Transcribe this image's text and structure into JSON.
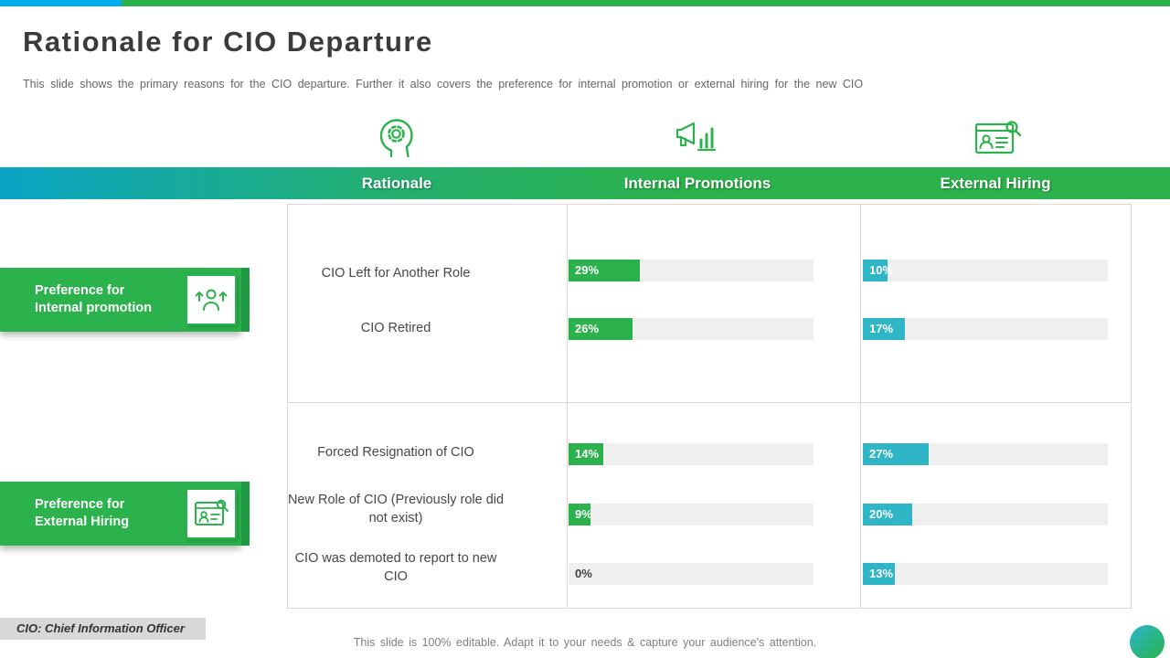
{
  "slide": {
    "title": "Rationale for CIO Departure",
    "subtitle": "This slide shows the primary reasons for the CIO departure. Further it also covers the preference for internal promotion or external hiring for the new CIO"
  },
  "table": {
    "columns": [
      {
        "label": "Rationale"
      },
      {
        "label": "Internal Promotions"
      },
      {
        "label": "External Hiring"
      }
    ]
  },
  "left_labels": {
    "internal": "Preference for Internal promotion",
    "external": "Preference for External Hiring"
  },
  "rows": [
    {
      "label": "CIO Left for Another Role",
      "internal": "29%",
      "external": "10%"
    },
    {
      "label": "CIO Retired",
      "internal": "26%",
      "external": "17%"
    },
    {
      "label": "Forced Resignation of CIO",
      "internal": "14%",
      "external": "27%"
    },
    {
      "label": "New Role of CIO (Previously role did not exist)",
      "internal": "9%",
      "external": "20%"
    },
    {
      "label": "CIO was demoted to report to new CIO",
      "internal": "0%",
      "external": "13%"
    }
  ],
  "footer": {
    "abbreviation": "CIO: Chief Information Officer",
    "note": "This slide is 100% editable. Adapt it to your needs & capture your audience's attention."
  },
  "colors": {
    "accent_green": "#2bb24c",
    "accent_teal": "#2eb6c6",
    "band_gradient_left": "#0ba4c6",
    "top_strip_cyan": "#00aeef",
    "bar_track_gray": "#efefef",
    "dark_green_accent": "#1d9a41"
  },
  "chart_data": {
    "type": "bar",
    "categories": [
      "CIO Left for Another Role",
      "CIO Retired",
      "Forced Resignation of CIO",
      "New Role of CIO (Previously role did not exist)",
      "CIO was demoted to report to new CIO"
    ],
    "series": [
      {
        "name": "Internal Promotions",
        "values": [
          29,
          26,
          14,
          9,
          0
        ]
      },
      {
        "name": "External Hiring",
        "values": [
          10,
          17,
          27,
          20,
          13
        ]
      }
    ],
    "unit": "%",
    "xlim": [
      0,
      100
    ],
    "title": "Rationale for CIO Departure",
    "legend_position": "column-headers",
    "grid": true
  }
}
